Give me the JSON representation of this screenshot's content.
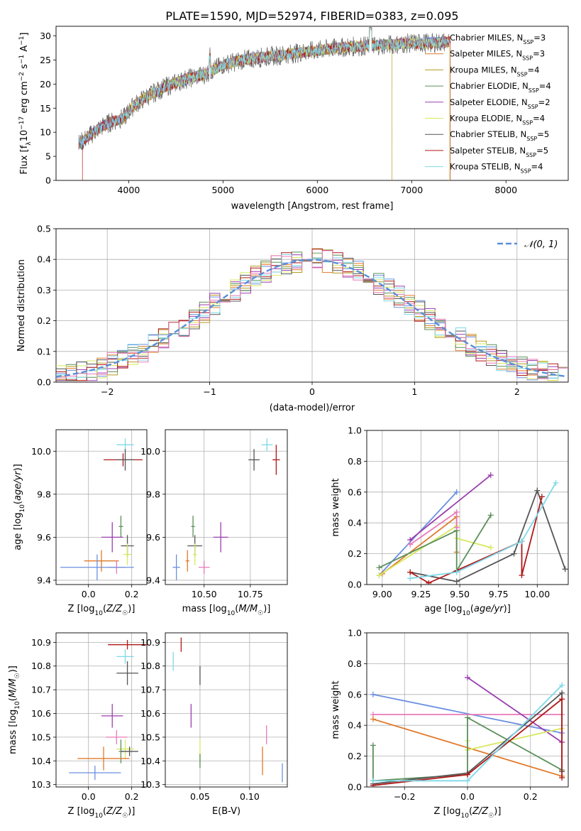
{
  "figure": {
    "title": "PLATE=1590, MJD=52974, FIBERID=0383, z=0.095"
  },
  "colors": {
    "chabrier_miles": "#6a8fe0",
    "salpeter_miles": "#e07a2c",
    "kroupa_miles": "#b59a1f",
    "chabrier_elodie": "#5a8f5a",
    "salpeter_elodie": "#9a3fb0",
    "kroupa_elodie": "#d8e860",
    "chabrier_stelib": "#555555",
    "salpeter_stelib": "#b01818",
    "kroupa_stelib": "#7fd8e8",
    "pink": "#e87ab8",
    "gauss": "#5a8fd8"
  },
  "chart_data": [
    {
      "type": "line",
      "id": "spectrum",
      "xlabel": "wavelength [Angstrom, rest frame]",
      "ylabel": "Flux [f_λ10^-17 erg cm^-2 s^-1 A^-1]",
      "xlim": [
        3230,
        8660
      ],
      "ylim": [
        0,
        32
      ],
      "xticks": [
        4000,
        5000,
        6000,
        7000,
        8000
      ],
      "yticks": [
        0,
        5,
        10,
        15,
        20,
        25,
        30
      ],
      "continuum_x": [
        3470,
        3600,
        3700,
        3800,
        3950,
        4050,
        4200,
        4400,
        4600,
        4800,
        5000,
        5200,
        5400,
        5600,
        5800,
        6000,
        6200,
        6400,
        6600,
        6800,
        7000,
        7200,
        7400
      ],
      "continuum_y": [
        7.5,
        9.5,
        11,
        12,
        13,
        15.5,
        17.5,
        19.5,
        21,
        22,
        24,
        25,
        25.5,
        26,
        26.5,
        27,
        27.5,
        27.8,
        28,
        28.2,
        28.5,
        28.5,
        28.8
      ],
      "series": [
        {
          "name": "Chabrier MILES, N_SSP=3",
          "label_main": "Chabrier MILES, N",
          "label_sub": "SSP",
          "label_tail": "=3",
          "color_key": "chabrier_miles"
        },
        {
          "name": "Salpeter MILES, N_SSP=3",
          "label_main": "Salpeter MILES, N",
          "label_sub": "SSP",
          "label_tail": "=3",
          "color_key": "salpeter_miles"
        },
        {
          "name": "Kroupa MILES, N_SSP=4",
          "label_main": "Kroupa MILES, N",
          "label_sub": "SSP",
          "label_tail": "=4",
          "color_key": "kroupa_miles"
        },
        {
          "name": "Chabrier ELODIE, N_SSP=4",
          "label_main": "Chabrier ELODIE, N",
          "label_sub": "SSP",
          "label_tail": "=4",
          "color_key": "chabrier_elodie"
        },
        {
          "name": "Salpeter ELODIE, N_SSP=2",
          "label_main": "Salpeter ELODIE, N",
          "label_sub": "SSP",
          "label_tail": "=2",
          "color_key": "salpeter_elodie"
        },
        {
          "name": "Kroupa ELODIE, N_SSP=4",
          "label_main": "Kroupa ELODIE, N",
          "label_sub": "SSP",
          "label_tail": "=4",
          "color_key": "kroupa_elodie"
        },
        {
          "name": "Chabrier STELIB, N_SSP=5",
          "label_main": "Chabrier STELIB, N",
          "label_sub": "SSP",
          "label_tail": "=5",
          "color_key": "chabrier_stelib"
        },
        {
          "name": "Salpeter STELIB, N_SSP=5",
          "label_main": "Salpeter STELIB, N",
          "label_sub": "SSP",
          "label_tail": "=5",
          "color_key": "salpeter_stelib"
        },
        {
          "name": "Kroupa STELIB, N_SSP=4",
          "label_main": "Kroupa STELIB, N",
          "label_sub": "SSP",
          "label_tail": "=4",
          "color_key": "kroupa_stelib"
        }
      ]
    },
    {
      "type": "histogram",
      "id": "residuals",
      "xlabel": "(data-model)/error",
      "ylabel": "Normed distribution",
      "xlim": [
        -2.5,
        2.5
      ],
      "ylim": [
        0,
        0.5
      ],
      "xticks": [
        -2,
        -1,
        0,
        1,
        2
      ],
      "yticks": [
        0.0,
        0.1,
        0.2,
        0.3,
        0.4,
        0.5
      ],
      "bin_width": 0.1,
      "legend": "𝒩(0, 1)",
      "legend_position": "top-right",
      "grid": true
    },
    {
      "type": "scatter",
      "id": "age_vs_Z",
      "xlabel": "Z [log10(Z/Z☉)]",
      "ylabel": "age [log10(age/yr)]",
      "xlim": [
        -0.15,
        0.27
      ],
      "ylim": [
        9.38,
        10.1
      ],
      "xticks": [
        0.0,
        0.2
      ],
      "yticks": [
        9.4,
        9.6,
        9.8,
        10.0
      ],
      "points": [
        {
          "x": 0.17,
          "y": 10.03,
          "ex": 0.04,
          "ey": 0.03,
          "color_key": "kroupa_stelib"
        },
        {
          "x": 0.16,
          "y": 9.96,
          "ex": 0.09,
          "ey": 0.03,
          "color_key": "salpeter_stelib"
        },
        {
          "x": 0.17,
          "y": 9.96,
          "ex": 0.04,
          "ey": 0.05,
          "color_key": "chabrier_stelib"
        },
        {
          "x": 0.15,
          "y": 9.65,
          "ex": 0.01,
          "ey": 0.05,
          "color_key": "chabrier_elodie"
        },
        {
          "x": 0.11,
          "y": 9.6,
          "ex": 0.05,
          "ey": 0.07,
          "color_key": "salpeter_elodie"
        },
        {
          "x": 0.18,
          "y": 9.56,
          "ex": 0.03,
          "ey": 0.05,
          "color_key": "chabrier_stelib"
        },
        {
          "x": 0.18,
          "y": 9.52,
          "ex": 0.02,
          "ey": 0.05,
          "color_key": "kroupa_elodie"
        },
        {
          "x": 0.06,
          "y": 9.49,
          "ex": 0.08,
          "ey": 0.05,
          "color_key": "salpeter_miles"
        },
        {
          "x": 0.13,
          "y": 9.46,
          "ex": 0.04,
          "ey": 0.03,
          "color_key": "pink"
        },
        {
          "x": 0.04,
          "y": 9.46,
          "ex": 0.17,
          "ey": 0.06,
          "color_key": "chabrier_miles"
        }
      ]
    },
    {
      "type": "scatter",
      "id": "age_vs_mass",
      "xlabel": "mass [log10(M/M☉)]",
      "ylabel": "",
      "xlim": [
        10.29,
        10.95
      ],
      "ylim": [
        9.38,
        10.1
      ],
      "xticks": [
        10.5,
        10.75
      ],
      "yticks": [
        9.4,
        9.6,
        9.8,
        10.0
      ],
      "points": [
        {
          "x": 10.84,
          "y": 10.03,
          "ex": 0.03,
          "ey": 0.03,
          "color_key": "kroupa_stelib"
        },
        {
          "x": 10.77,
          "y": 9.96,
          "ex": 0.03,
          "ey": 0.05,
          "color_key": "chabrier_stelib"
        },
        {
          "x": 10.89,
          "y": 9.96,
          "ex": 0.02,
          "ey": 0.07,
          "color_key": "salpeter_stelib"
        },
        {
          "x": 10.44,
          "y": 9.65,
          "ex": 0.01,
          "ey": 0.05,
          "color_key": "chabrier_elodie"
        },
        {
          "x": 10.59,
          "y": 9.6,
          "ex": 0.04,
          "ey": 0.07,
          "color_key": "salpeter_elodie"
        },
        {
          "x": 10.45,
          "y": 9.56,
          "ex": 0.04,
          "ey": 0.05,
          "color_key": "chabrier_stelib"
        },
        {
          "x": 10.45,
          "y": 9.52,
          "ex": 0.01,
          "ey": 0.05,
          "color_key": "kroupa_elodie"
        },
        {
          "x": 10.41,
          "y": 9.49,
          "ex": 0.01,
          "ey": 0.05,
          "color_key": "salpeter_miles"
        },
        {
          "x": 10.5,
          "y": 9.46,
          "ex": 0.03,
          "ey": 0.03,
          "color_key": "pink"
        },
        {
          "x": 10.35,
          "y": 9.46,
          "ex": 0.02,
          "ey": 0.06,
          "color_key": "chabrier_miles"
        }
      ]
    },
    {
      "type": "line",
      "id": "weight_vs_age",
      "xlabel": "age [log10(age/yr)]",
      "ylabel": "mass weight",
      "xlim": [
        8.9,
        10.2
      ],
      "ylim": [
        0,
        1.0
      ],
      "xticks": [
        9.0,
        9.25,
        9.5,
        9.75,
        10.0
      ],
      "yticks": [
        0.0,
        0.2,
        0.4,
        0.6,
        0.8,
        1.0
      ],
      "series": [
        {
          "color_key": "chabrier_miles",
          "x": [
            8.98,
            9.48
          ],
          "y": [
            0.06,
            0.6
          ]
        },
        {
          "color_key": "salpeter_miles",
          "x": [
            9.0,
            9.48,
            9.48
          ],
          "y": [
            0.07,
            0.44,
            0.21
          ]
        },
        {
          "color_key": "kroupa_elodie",
          "x": [
            8.98,
            9.48,
            9.48,
            9.7
          ],
          "y": [
            0.06,
            0.38,
            0.3,
            0.24
          ]
        },
        {
          "color_key": "chabrier_elodie",
          "x": [
            8.98,
            9.48,
            9.48,
            9.7
          ],
          "y": [
            0.11,
            0.35,
            0.09,
            0.45
          ]
        },
        {
          "color_key": "salpeter_elodie",
          "x": [
            9.18,
            9.7
          ],
          "y": [
            0.29,
            0.71
          ]
        },
        {
          "color_key": "pink",
          "x": [
            9.18,
            9.48,
            9.48
          ],
          "y": [
            0.26,
            0.47,
            0.37
          ]
        },
        {
          "color_key": "chabrier_stelib",
          "x": [
            9.18,
            9.48,
            9.85,
            10.0,
            10.18
          ],
          "y": [
            0.08,
            0.02,
            0.2,
            0.61,
            0.1
          ]
        },
        {
          "color_key": "salpeter_stelib",
          "x": [
            9.18,
            9.3,
            9.9,
            9.9,
            10.03
          ],
          "y": [
            0.08,
            0.01,
            0.28,
            0.06,
            0.57
          ]
        },
        {
          "color_key": "kroupa_stelib",
          "x": [
            9.18,
            9.48,
            9.9,
            10.12
          ],
          "y": [
            0.04,
            0.08,
            0.28,
            0.66
          ]
        }
      ]
    },
    {
      "type": "scatter",
      "id": "mass_vs_Z",
      "xlabel": "Z [log10(Z/Z☉)]",
      "ylabel": "mass [log10(M/M☉)]",
      "xlim": [
        -0.15,
        0.27
      ],
      "ylim": [
        10.29,
        10.94
      ],
      "xticks": [
        0.0,
        0.2
      ],
      "yticks": [
        10.3,
        10.4,
        10.5,
        10.6,
        10.7,
        10.8,
        10.9
      ],
      "points": [
        {
          "x": 0.18,
          "y": 10.89,
          "ex": 0.09,
          "ey": 0.02,
          "color_key": "salpeter_stelib"
        },
        {
          "x": 0.17,
          "y": 10.84,
          "ex": 0.04,
          "ey": 0.03,
          "color_key": "kroupa_stelib"
        },
        {
          "x": 0.18,
          "y": 10.77,
          "ex": 0.05,
          "ey": 0.05,
          "color_key": "chabrier_stelib"
        },
        {
          "x": 0.11,
          "y": 10.59,
          "ex": 0.05,
          "ey": 0.05,
          "color_key": "salpeter_elodie"
        },
        {
          "x": 0.13,
          "y": 10.5,
          "ex": 0.05,
          "ey": 0.03,
          "color_key": "pink"
        },
        {
          "x": 0.17,
          "y": 10.45,
          "ex": 0.04,
          "ey": 0.04,
          "color_key": "kroupa_elodie"
        },
        {
          "x": 0.15,
          "y": 10.44,
          "ex": 0.01,
          "ey": 0.05,
          "color_key": "chabrier_elodie"
        },
        {
          "x": 0.19,
          "y": 10.44,
          "ex": 0.04,
          "ey": 0.02,
          "color_key": "chabrier_stelib"
        },
        {
          "x": 0.07,
          "y": 10.41,
          "ex": 0.12,
          "ey": 0.05,
          "color_key": "salpeter_miles"
        },
        {
          "x": 0.03,
          "y": 10.35,
          "ex": 0.12,
          "ey": 0.03,
          "color_key": "chabrier_miles"
        }
      ]
    },
    {
      "type": "scatter",
      "id": "mass_vs_ebv",
      "xlabel": "E(B-V)",
      "ylabel": "",
      "xlim": [
        0.015,
        0.138
      ],
      "ylim": [
        10.29,
        10.94
      ],
      "xticks": [
        0.05,
        0.1
      ],
      "yticks": [
        10.3,
        10.4,
        10.5,
        10.6,
        10.7,
        10.8,
        10.9
      ],
      "points": [
        {
          "x": 0.031,
          "y": 10.89,
          "ex": 0,
          "ey": 0.03,
          "color_key": "salpeter_stelib"
        },
        {
          "x": 0.023,
          "y": 10.82,
          "ex": 0,
          "ey": 0.04,
          "color_key": "kroupa_stelib"
        },
        {
          "x": 0.05,
          "y": 10.76,
          "ex": 0,
          "ey": 0.04,
          "color_key": "chabrier_stelib"
        },
        {
          "x": 0.041,
          "y": 10.59,
          "ex": 0,
          "ey": 0.05,
          "color_key": "salpeter_elodie"
        },
        {
          "x": 0.117,
          "y": 10.51,
          "ex": 0,
          "ey": 0.04,
          "color_key": "pink"
        },
        {
          "x": 0.05,
          "y": 10.44,
          "ex": 0,
          "ey": 0.05,
          "color_key": "kroupa_elodie"
        },
        {
          "x": 0.05,
          "y": 10.4,
          "ex": 0,
          "ey": 0.03,
          "color_key": "chabrier_elodie"
        },
        {
          "x": 0.113,
          "y": 10.4,
          "ex": 0,
          "ey": 0.06,
          "color_key": "salpeter_miles"
        },
        {
          "x": 0.133,
          "y": 10.35,
          "ex": 0,
          "ey": 0.04,
          "color_key": "chabrier_miles"
        }
      ]
    },
    {
      "type": "line",
      "id": "weight_vs_Z",
      "xlabel": "Z [log10(Z/Z☉)]",
      "ylabel": "mass weight",
      "xlim": [
        -0.32,
        0.32
      ],
      "ylim": [
        0,
        1.0
      ],
      "xticks": [
        -0.2,
        0.0,
        0.2
      ],
      "yticks": [
        0.0,
        0.2,
        0.4,
        0.6,
        0.8,
        1.0
      ],
      "series": [
        {
          "color_key": "chabrier_miles",
          "x": [
            -0.3,
            0.3
          ],
          "y": [
            0.6,
            0.35
          ]
        },
        {
          "color_key": "pink",
          "x": [
            -0.3,
            0.3
          ],
          "y": [
            0.47,
            0.47
          ]
        },
        {
          "color_key": "salpeter_miles",
          "x": [
            -0.3,
            0.3
          ],
          "y": [
            0.44,
            0.07
          ]
        },
        {
          "color_key": "salpeter_elodie",
          "x": [
            0.0,
            0.3
          ],
          "y": [
            0.71,
            0.29
          ]
        },
        {
          "color_key": "kroupa_elodie",
          "x": [
            0.0,
            0.0,
            0.3
          ],
          "y": [
            0.3,
            0.24,
            0.38
          ]
        },
        {
          "color_key": "chabrier_elodie",
          "x": [
            -0.3,
            -0.3,
            0.0,
            0.0,
            0.3
          ],
          "y": [
            0.27,
            0.04,
            0.08,
            0.45,
            0.11
          ]
        },
        {
          "color_key": "chabrier_stelib",
          "x": [
            -0.3,
            0.0,
            0.3,
            0.3
          ],
          "y": [
            0.02,
            0.09,
            0.61,
            0.1
          ]
        },
        {
          "color_key": "salpeter_stelib",
          "x": [
            -0.3,
            0.0,
            0.3,
            0.3
          ],
          "y": [
            0.01,
            0.08,
            0.57,
            0.06
          ]
        },
        {
          "color_key": "kroupa_stelib",
          "x": [
            -0.3,
            0.0,
            0.3
          ],
          "y": [
            0.04,
            0.04,
            0.66
          ]
        }
      ]
    }
  ]
}
